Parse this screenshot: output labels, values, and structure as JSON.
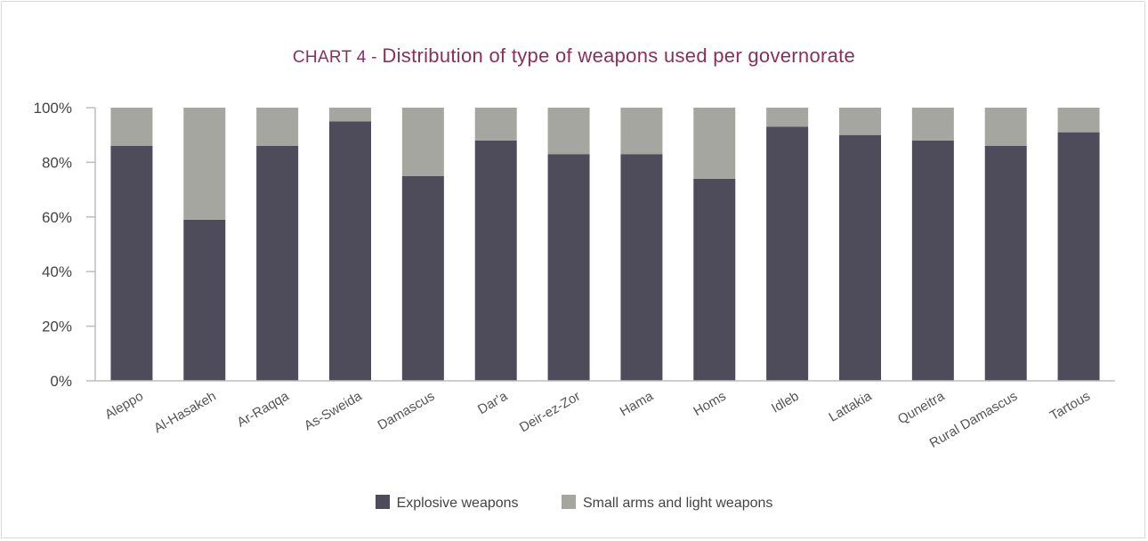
{
  "title_prefix": "CHART 4 - ",
  "title_main": "Distribution of type of weapons used per governorate",
  "colors": {
    "explosive": "#4e4b5b",
    "small_arms": "#a5a6a0",
    "title": "#8a2f5b",
    "axis": "#bdbdbd"
  },
  "chart_data": {
    "type": "bar",
    "stacked": true,
    "title": "CHART 4 - Distribution of type of weapons used per governorate",
    "categories": [
      "Aleppo",
      "Al-Hasakeh",
      "Ar-Raqqa",
      "As-Sweida",
      "Damascus",
      "Dar'a",
      "Deir-ez-Zor",
      "Hama",
      "Homs",
      "Idleb",
      "Lattakia",
      "Quneitra",
      "Rural Damascus",
      "Tartous"
    ],
    "series": [
      {
        "name": "Explosive weapons",
        "values": [
          86,
          59,
          86,
          95,
          75,
          88,
          83,
          83,
          74,
          93,
          90,
          88,
          86,
          91
        ]
      },
      {
        "name": "Small arms and light weapons",
        "values": [
          14,
          41,
          14,
          5,
          25,
          12,
          17,
          17,
          26,
          7,
          10,
          12,
          14,
          9
        ]
      }
    ],
    "yticks": [
      "0%",
      "20%",
      "40%",
      "60%",
      "80%",
      "100%"
    ],
    "ylim": [
      0,
      100
    ],
    "grid": false,
    "legend_position": "bottom"
  }
}
